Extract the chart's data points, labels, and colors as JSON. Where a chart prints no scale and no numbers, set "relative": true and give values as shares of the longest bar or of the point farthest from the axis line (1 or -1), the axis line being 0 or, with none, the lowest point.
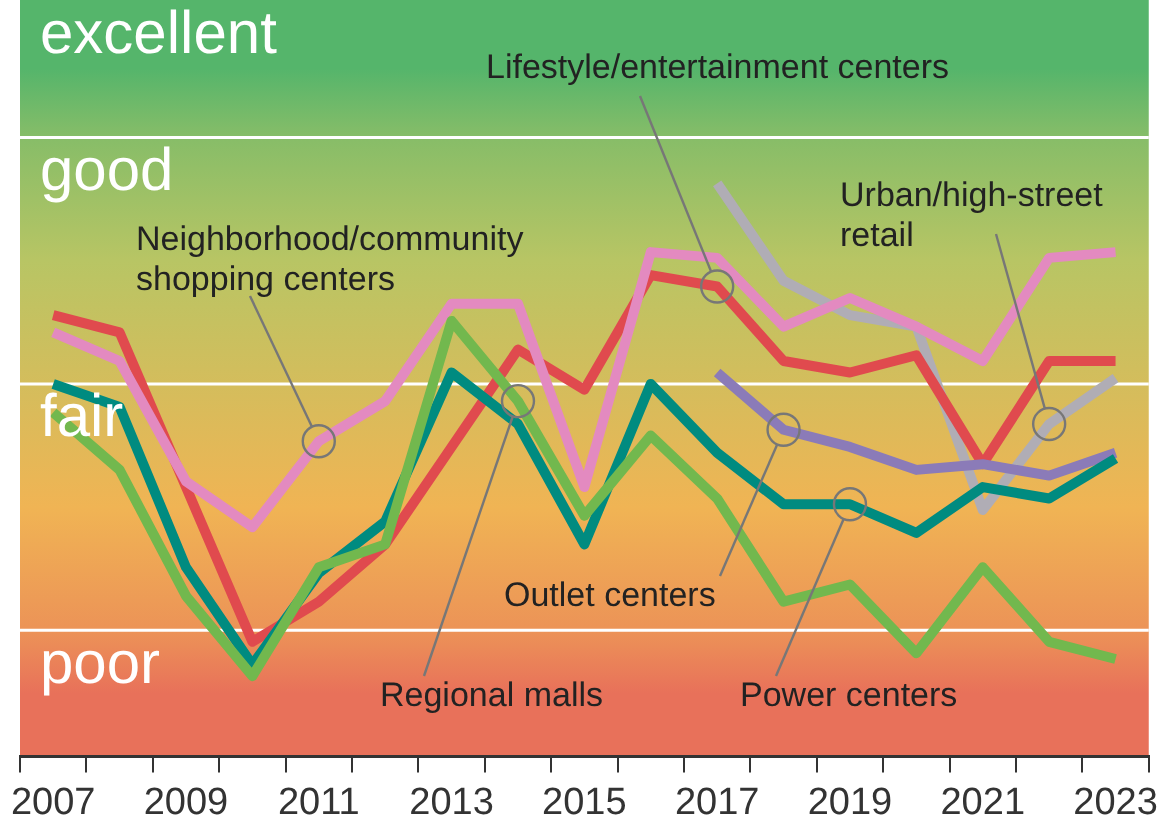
{
  "chart_data": {
    "type": "line",
    "categories": [
      "2007",
      null,
      "2009",
      null,
      "2011",
      null,
      "2013",
      null,
      "2015",
      null,
      "2017",
      null,
      "2019",
      null,
      "2021",
      null,
      "2023"
    ],
    "relative": true,
    "tick_labels": "x",
    "ref_lines": [
      {
        "axis": "y",
        "value": 1.08,
        "color": "#ffffff"
      },
      {
        "axis": "y",
        "value": 0.65,
        "color": "#ffffff"
      },
      {
        "axis": "y",
        "value": 0.22,
        "color": "#ffffff"
      }
    ],
    "legend": false,
    "marker": "none",
    "bands": [
      {
        "axis": "y",
        "from": 1.08,
        "to": 1.32,
        "label": "excellent",
        "color": "#55b56b"
      },
      {
        "axis": "y",
        "from": 0.65,
        "to": 1.08,
        "label": "good",
        "color": "#b8c564"
      },
      {
        "axis": "y",
        "from": 0.22,
        "to": 0.65,
        "label": "fair",
        "color": "#f0b454"
      },
      {
        "axis": "y",
        "from": 0,
        "to": 0.22,
        "label": "poor",
        "color": "#e8715a"
      }
    ],
    "series": [
      {
        "name": "Regional malls",
        "color": "#72b84e",
        "values": [
          0.6,
          0.5,
          0.28,
          0.14,
          0.33,
          0.37,
          0.76,
          0.62,
          0.42,
          0.56,
          0.45,
          0.27,
          0.3,
          0.18,
          0.33,
          0.2,
          0.17
        ]
      },
      {
        "name": "Power centers",
        "color": "#008b80",
        "values": [
          0.65,
          0.61,
          0.33,
          0.16,
          0.32,
          0.41,
          0.67,
          0.58,
          0.37,
          0.65,
          0.53,
          0.44,
          0.44,
          0.39,
          0.47,
          0.45,
          0.52
        ]
      },
      {
        "name": "Outlet centers",
        "color": "#8b7bb8",
        "values": [
          null,
          null,
          null,
          null,
          null,
          null,
          null,
          null,
          null,
          null,
          0.67,
          0.57,
          0.54,
          0.5,
          0.51,
          0.49,
          0.53
        ]
      },
      {
        "name": "Neighborhood/community shopping centers",
        "color": "#e38ac0",
        "values": [
          0.74,
          0.69,
          0.48,
          0.4,
          0.55,
          0.62,
          0.79,
          0.79,
          0.47,
          0.88,
          0.87,
          0.75,
          0.8,
          0.75,
          0.69,
          0.87,
          0.88
        ]
      },
      {
        "name": "Lifestyle/entertainment centers",
        "color": "#e04a4e",
        "values": [
          0.77,
          0.74,
          0.47,
          0.2,
          0.27,
          0.37,
          0.54,
          0.71,
          0.64,
          0.84,
          0.82,
          0.69,
          0.67,
          0.7,
          0.51,
          0.69,
          0.69
        ]
      },
      {
        "name": "Urban/high-street retail",
        "color": "#b0adb5",
        "values": [
          null,
          null,
          null,
          null,
          null,
          null,
          null,
          null,
          null,
          null,
          1,
          0.83,
          0.77,
          0.75,
          0.43,
          0.58,
          0.66
        ]
      }
    ]
  }
}
